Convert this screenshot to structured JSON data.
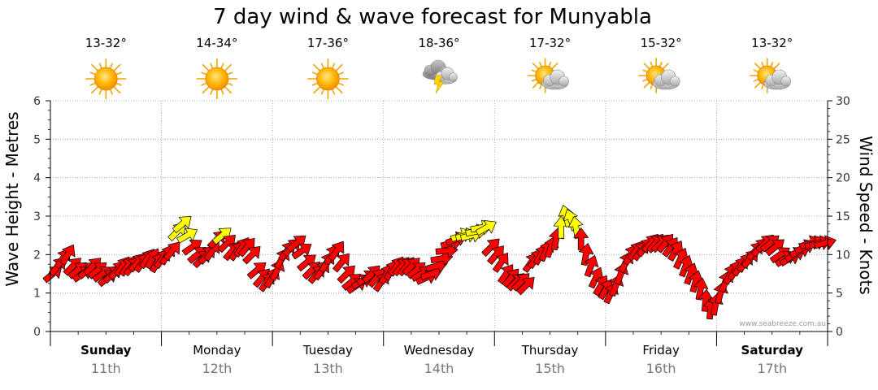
{
  "chart_data": {
    "type": "scatter",
    "title": "7 day wind & wave forecast for Munyabla",
    "ylabel_left": "Wave Height - Metres",
    "ylabel_right": "Wind Speed - Knots",
    "ylim_left": [
      0,
      6
    ],
    "ylim_right": [
      0,
      30
    ],
    "yticks_left": [
      "0",
      "1",
      "2",
      "3",
      "4",
      "5",
      "6"
    ],
    "yticks_right": [
      "0",
      "5",
      "10",
      "15",
      "20",
      "25",
      "30"
    ],
    "grid": true,
    "watermark": "www.seabreeze.com.au",
    "colors": {
      "calm_arrow": "#ff0000",
      "strong_arrow": "#ffff00",
      "arrow_outline": "#000000",
      "grid": "#999999"
    },
    "days": [
      {
        "name": "Sunday",
        "date": "11th",
        "temp": "13-32°",
        "icon": "sun-icon",
        "bold": true
      },
      {
        "name": "Monday",
        "date": "12th",
        "temp": "14-34°",
        "icon": "sun-icon",
        "bold": false
      },
      {
        "name": "Tuesday",
        "date": "13th",
        "temp": "17-36°",
        "icon": "sun-icon",
        "bold": false
      },
      {
        "name": "Wednesday",
        "date": "14th",
        "temp": "18-36°",
        "icon": "thunderstorm-icon",
        "bold": false
      },
      {
        "name": "Thursday",
        "date": "15th",
        "temp": "17-32°",
        "icon": "partly-cloudy-icon",
        "bold": false
      },
      {
        "name": "Friday",
        "date": "16th",
        "temp": "15-32°",
        "icon": "partly-cloudy-icon",
        "bold": false
      },
      {
        "name": "Saturday",
        "date": "17th",
        "temp": "13-32°",
        "icon": "partly-cloudy-icon",
        "bold": true
      }
    ],
    "wind_knots": [
      7.5,
      8.5,
      9.5,
      10,
      8.5,
      8,
      7.5,
      8,
      8.5,
      8,
      7.5,
      7,
      7.5,
      8,
      8.5,
      8.5,
      8.5,
      9,
      9,
      9.5,
      9.5,
      9,
      9.5,
      10,
      10.5,
      13,
      14,
      12.5,
      11,
      10,
      9.5,
      10,
      10.5,
      12,
      12.5,
      11.5,
      10.5,
      10.5,
      11,
      11,
      10,
      8,
      7,
      6.5,
      7,
      8,
      9.5,
      10.5,
      11,
      11.5,
      10.5,
      9,
      8,
      7.5,
      8,
      9,
      10,
      10.5,
      9,
      7.5,
      6.5,
      6,
      6.5,
      7,
      7.5,
      7,
      6.5,
      7.5,
      8,
      8.5,
      8.5,
      8.5,
      8.5,
      8,
      7.5,
      7,
      7.5,
      8.5,
      9.5,
      10.5,
      11.5,
      12,
      12.5,
      12.5,
      12.5,
      13,
      13.5,
      13.5,
      11,
      10,
      9,
      7.5,
      7,
      6.5,
      6.5,
      6,
      9,
      9.5,
      10,
      10.5,
      11,
      12,
      13.5,
      15,
      14.5,
      13.5,
      12,
      10,
      8.5,
      7,
      6,
      5.5,
      5,
      6,
      7.5,
      9,
      10,
      10.5,
      10.5,
      11,
      11.5,
      11.5,
      11.5,
      11.5,
      11,
      10.5,
      9.5,
      8.5,
      7.5,
      6.5,
      5.5,
      4,
      3,
      3.5,
      5,
      6.5,
      7.5,
      8,
      8.5,
      9,
      9.5,
      10.5,
      11,
      11.5,
      11.5,
      11,
      10,
      9.5,
      9.5,
      10,
      10.5,
      11,
      11.5,
      11.5,
      11.5,
      11.5
    ],
    "wind_dir_deg": [
      230,
      220,
      215,
      210,
      225,
      230,
      235,
      230,
      225,
      230,
      235,
      230,
      225,
      220,
      215,
      215,
      220,
      220,
      215,
      215,
      210,
      210,
      215,
      210,
      220,
      225,
      230,
      240,
      235,
      230,
      225,
      220,
      215,
      225,
      230,
      225,
      220,
      215,
      215,
      220,
      225,
      230,
      220,
      215,
      210,
      205,
      210,
      215,
      225,
      230,
      235,
      230,
      225,
      220,
      215,
      210,
      210,
      215,
      220,
      225,
      230,
      235,
      240,
      235,
      225,
      220,
      215,
      210,
      210,
      215,
      220,
      220,
      225,
      230,
      240,
      245,
      250,
      255,
      260,
      265,
      255,
      250,
      250,
      255,
      255,
      260,
      260,
      240,
      225,
      220,
      215,
      215,
      220,
      225,
      225,
      225,
      215,
      215,
      210,
      205,
      200,
      190,
      180,
      165,
      160,
      170,
      180,
      190,
      200,
      205,
      210,
      210,
      205,
      200,
      200,
      205,
      210,
      215,
      215,
      220,
      220,
      220,
      225,
      220,
      215,
      210,
      205,
      200,
      200,
      195,
      190,
      185,
      185,
      190,
      195,
      200,
      205,
      210,
      215,
      215,
      220,
      220,
      220,
      225,
      230,
      230,
      235,
      235,
      240,
      240,
      245,
      245,
      250,
      250,
      255,
      255
    ]
  }
}
